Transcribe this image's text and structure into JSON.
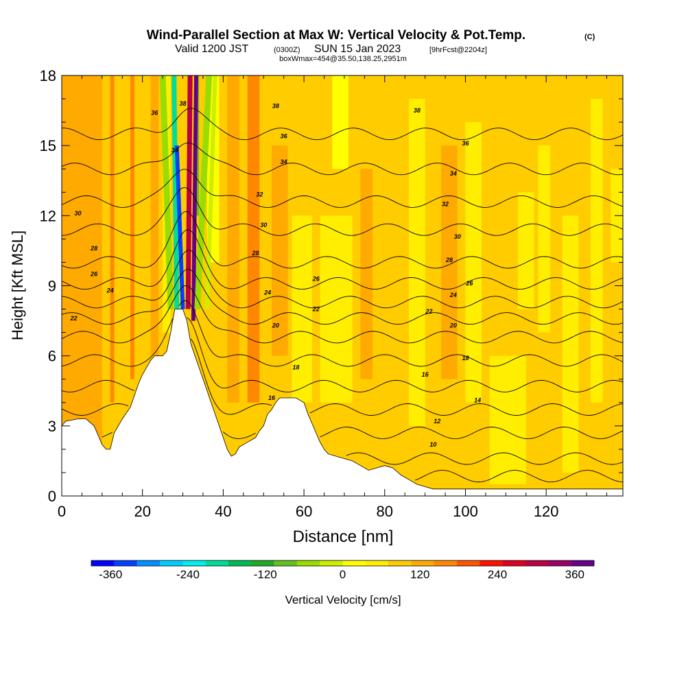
{
  "header": {
    "title": "Wind-Parallel Section at Max W: Vertical Velocity & Pot.Temp.",
    "copyright": "(C)",
    "valid_prefix": "Valid 1200 JST",
    "valid_utc": "(0300Z)",
    "valid_date": "SUN 15 Jan 2023",
    "forecast": "[9hrFcst@2204z]",
    "boxline": "boxWmax=454@35.50,138.25,2951m"
  },
  "chart_data": {
    "type": "heatmap",
    "xlabel": "Distance [nm]",
    "ylabel": "Height [Kft MSL]",
    "xlim": [
      0,
      139
    ],
    "ylim": [
      0,
      18
    ],
    "x_ticks": [
      0,
      20,
      40,
      60,
      80,
      100,
      120
    ],
    "y_ticks": [
      0,
      3,
      6,
      9,
      12,
      15,
      18
    ],
    "grid": false,
    "colorbar": {
      "label": "Vertical Velocity [cm/s]",
      "orientation": "horizontal",
      "placement": "bottom",
      "min": -390,
      "max": 390,
      "step": 30,
      "tick_labels": [
        "-360",
        "-240",
        "-120",
        "0",
        "120",
        "240",
        "360"
      ],
      "tick_values": [
        -360,
        -240,
        -120,
        0,
        120,
        240,
        360
      ],
      "colors": [
        "#0000ff",
        "#0040ff",
        "#0090ff",
        "#00ccff",
        "#00eeee",
        "#00dd99",
        "#00bb55",
        "#22aa22",
        "#66c022",
        "#99dd00",
        "#ccee00",
        "#ffff00",
        "#ffee00",
        "#ffcc00",
        "#ffaa00",
        "#ff8800",
        "#ff5500",
        "#ff1100",
        "#dd0022",
        "#bb0044",
        "#990066",
        "#660088"
      ]
    },
    "terrain_kft": [
      [
        0,
        3.0
      ],
      [
        1,
        3.2
      ],
      [
        4,
        3.3
      ],
      [
        6,
        3.3
      ],
      [
        8,
        3.0
      ],
      [
        9,
        2.6
      ],
      [
        10,
        2.2
      ],
      [
        11,
        2.0
      ],
      [
        12,
        2.0
      ],
      [
        13,
        2.7
      ],
      [
        14,
        3.0
      ],
      [
        15,
        3.3
      ],
      [
        17,
        3.8
      ],
      [
        18,
        4.3
      ],
      [
        19,
        4.8
      ],
      [
        20,
        5.2
      ],
      [
        21,
        5.5
      ],
      [
        22,
        5.8
      ],
      [
        23,
        6.0
      ],
      [
        25,
        6.0
      ],
      [
        26,
        6.2
      ],
      [
        27,
        7.0
      ],
      [
        28,
        8.0
      ],
      [
        30,
        8.0
      ],
      [
        31,
        7.5
      ],
      [
        32,
        6.5
      ],
      [
        33,
        6.0
      ],
      [
        34,
        5.5
      ],
      [
        35,
        5.0
      ],
      [
        36,
        4.5
      ],
      [
        37,
        4.0
      ],
      [
        38,
        3.5
      ],
      [
        39,
        3.0
      ],
      [
        40,
        2.5
      ],
      [
        41,
        2.0
      ],
      [
        42,
        1.7
      ],
      [
        43,
        1.8
      ],
      [
        44,
        2.1
      ],
      [
        46,
        2.3
      ],
      [
        48,
        2.5
      ],
      [
        49,
        2.8
      ],
      [
        50,
        3.0
      ],
      [
        51,
        3.5
      ],
      [
        52,
        3.7
      ],
      [
        53,
        4.0
      ],
      [
        54,
        4.2
      ],
      [
        58,
        4.2
      ],
      [
        60,
        4.0
      ],
      [
        61,
        3.5
      ],
      [
        62,
        3.1
      ],
      [
        63,
        2.7
      ],
      [
        64,
        2.3
      ],
      [
        65,
        2.0
      ],
      [
        66,
        1.8
      ],
      [
        68,
        1.7
      ],
      [
        70,
        1.6
      ],
      [
        72,
        1.5
      ],
      [
        74,
        1.3
      ],
      [
        76,
        1.1
      ],
      [
        78,
        1.2
      ],
      [
        80,
        1.3
      ],
      [
        82,
        1.2
      ],
      [
        84,
        0.9
      ],
      [
        86,
        0.7
      ],
      [
        88,
        0.5
      ],
      [
        90,
        0.4
      ],
      [
        92,
        0.3
      ],
      [
        139,
        0.3
      ]
    ],
    "isentropes": [
      {
        "label": "10",
        "base": 0.85,
        "labels_at": [
          [
            92,
            2.2
          ]
        ]
      },
      {
        "label": "12",
        "base": 1.6,
        "labels_at": [
          [
            93,
            3.2
          ]
        ]
      },
      {
        "label": "14",
        "base": 2.7,
        "labels_at": [
          [
            103,
            4.1
          ]
        ]
      },
      {
        "label": "16",
        "base": 3.7,
        "labels_at": [
          [
            52,
            4.2
          ],
          [
            90,
            5.2
          ]
        ]
      },
      {
        "label": "18",
        "base": 4.7,
        "labels_at": [
          [
            58,
            5.5
          ],
          [
            100,
            5.9
          ]
        ]
      },
      {
        "label": "20",
        "base": 5.8,
        "labels_at": [
          [
            53,
            7.3
          ],
          [
            97,
            7.3
          ]
        ]
      },
      {
        "label": "22",
        "base": 6.8,
        "labels_at": [
          [
            3,
            7.6
          ],
          [
            63,
            8.0
          ],
          [
            91,
            7.9
          ]
        ]
      },
      {
        "label": "24",
        "base": 7.6,
        "labels_at": [
          [
            12,
            8.8
          ],
          [
            51,
            8.7
          ],
          [
            97,
            8.6
          ]
        ]
      },
      {
        "label": "26",
        "base": 8.3,
        "labels_at": [
          [
            8,
            9.5
          ],
          [
            63,
            9.3
          ],
          [
            101,
            9.1
          ]
        ]
      },
      {
        "label": "28",
        "base": 9.1,
        "labels_at": [
          [
            8,
            10.6
          ],
          [
            48,
            10.4
          ],
          [
            96,
            10.1
          ]
        ]
      },
      {
        "label": "30",
        "base": 10.0,
        "labels_at": [
          [
            4,
            12.1
          ],
          [
            50,
            11.6
          ],
          [
            98,
            11.1
          ]
        ]
      },
      {
        "label": "32",
        "base": 11.4,
        "labels_at": [
          [
            49,
            12.9
          ],
          [
            95,
            12.5
          ]
        ]
      },
      {
        "label": "34",
        "base": 12.6,
        "labels_at": [
          [
            28,
            14.8
          ],
          [
            55,
            14.3
          ],
          [
            97,
            13.8
          ]
        ]
      },
      {
        "label": "36",
        "base": 14.0,
        "labels_at": [
          [
            23,
            16.4
          ],
          [
            55,
            15.4
          ],
          [
            100,
            15.1
          ]
        ]
      },
      {
        "label": "38",
        "base": 15.5,
        "labels_at": [
          [
            30,
            16.8
          ],
          [
            53,
            16.7
          ],
          [
            88,
            16.5
          ]
        ]
      }
    ],
    "w_field": [
      {
        "x0": 0,
        "x1": 139,
        "y0": 0,
        "y1": 18,
        "w": 15
      },
      {
        "x0": 0,
        "x1": 10,
        "y0": 0,
        "y1": 18,
        "w": 45
      },
      {
        "x0": 12,
        "x1": 13,
        "y0": 4,
        "y1": 18,
        "w": 60
      },
      {
        "x0": 17,
        "x1": 18,
        "y0": 5,
        "y1": 18,
        "w": 60
      },
      {
        "x0": 22,
        "x1": 24,
        "y0": 6,
        "y1": 18,
        "w": 50
      },
      {
        "x0": 25,
        "x1": 27,
        "y0": 7,
        "y1": 18,
        "w": -20
      },
      {
        "x0": 33,
        "x1": 34,
        "y0": 12,
        "y1": 18,
        "w": -150
      },
      {
        "x0": 36,
        "x1": 39,
        "y0": 10,
        "y1": 18,
        "w": -60
      },
      {
        "x0": 41,
        "x1": 44,
        "y0": 4,
        "y1": 18,
        "w": 45
      },
      {
        "x0": 46,
        "x1": 49,
        "y0": 4,
        "y1": 18,
        "w": 60
      },
      {
        "x0": 52,
        "x1": 56,
        "y0": 6,
        "y1": 15,
        "w": 45
      },
      {
        "x0": 57,
        "x1": 62,
        "y0": 4,
        "y1": 12,
        "w": -20
      },
      {
        "x0": 67,
        "x1": 71,
        "y0": 14,
        "y1": 18,
        "w": -40
      },
      {
        "x0": 64,
        "x1": 72,
        "y0": 4,
        "y1": 12,
        "w": -20
      },
      {
        "x0": 74,
        "x1": 77,
        "y0": 5,
        "y1": 14,
        "w": 30
      },
      {
        "x0": 86,
        "x1": 90,
        "y0": 3,
        "y1": 17,
        "w": -20
      },
      {
        "x0": 94,
        "x1": 98,
        "y0": 5,
        "y1": 15,
        "w": 30
      },
      {
        "x0": 100,
        "x1": 104,
        "y0": 4,
        "y1": 16,
        "w": -20
      },
      {
        "x0": 106,
        "x1": 115,
        "y0": 0.5,
        "y1": 6,
        "w": -20
      },
      {
        "x0": 113,
        "x1": 117,
        "y0": 8,
        "y1": 13,
        "w": -20
      },
      {
        "x0": 118,
        "x1": 121,
        "y0": 7,
        "y1": 15,
        "w": -20
      },
      {
        "x0": 124,
        "x1": 128,
        "y0": 1,
        "y1": 12,
        "w": -20
      },
      {
        "x0": 131,
        "x1": 134,
        "y0": 4,
        "y1": 17,
        "w": -20
      },
      {
        "x0": 136,
        "x1": 139,
        "y0": 10,
        "y1": 14,
        "w": -20
      }
    ],
    "w_bands": [
      {
        "xb": 27,
        "xt": 25,
        "yb": 8,
        "yt": 18,
        "width": 1.5,
        "w": -120
      },
      {
        "xb": 28.5,
        "xt": 27.8,
        "yb": 8,
        "yt": 18,
        "width": 1.2,
        "w": -240
      },
      {
        "xb": 30,
        "xt": 28.5,
        "yb": 8,
        "yt": 15,
        "width": 1.0,
        "w": -360
      },
      {
        "xb": 31.3,
        "xt": 31.8,
        "yb": 8,
        "yt": 18,
        "width": 1.2,
        "w": 200
      },
      {
        "xb": 32.6,
        "xt": 33.3,
        "yb": 7.5,
        "yt": 18,
        "width": 1.0,
        "w": 330
      },
      {
        "xb": 33.6,
        "xt": 36.5,
        "yb": 8,
        "yt": 18,
        "width": 1.5,
        "w": -120
      },
      {
        "xb": 36,
        "xt": 38,
        "yb": 8,
        "yt": 18,
        "width": 1.0,
        "w": -90
      }
    ]
  }
}
